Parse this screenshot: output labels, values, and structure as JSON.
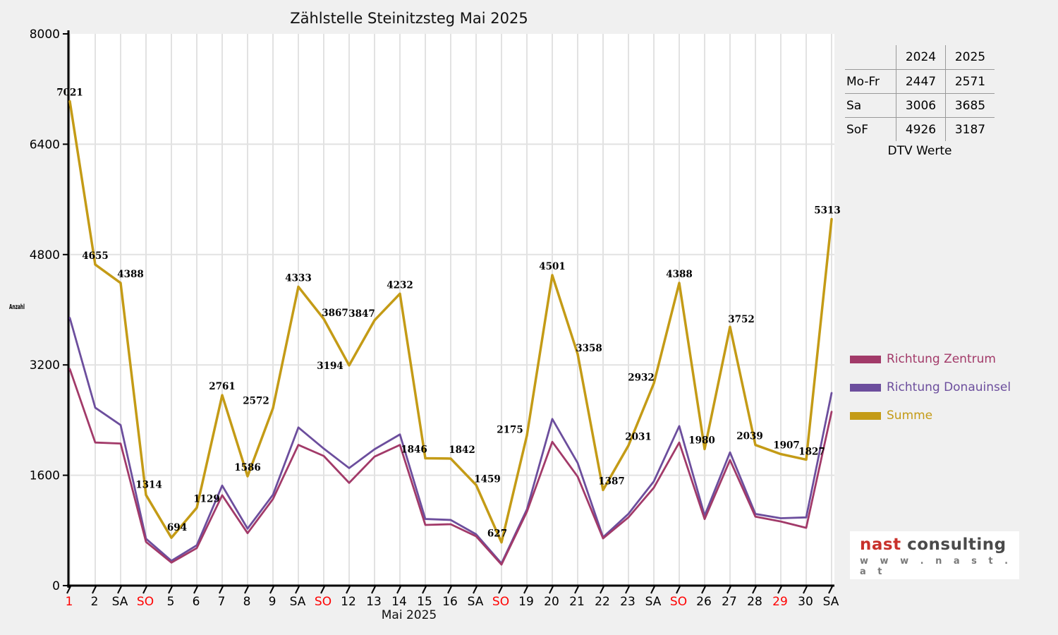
{
  "title": "Zählstelle Steinitzsteg Mai 2025",
  "colors": {
    "zentrum": "#A23A69",
    "donauinsel": "#6C4E9D",
    "summe": "#C49B16",
    "red_label": "#FF0000",
    "grid": "#E2E2E2",
    "axis": "#000000",
    "plot_bg": "#FFFFFF",
    "page_bg": "#F0F0F0",
    "label_text": "#000000"
  },
  "chart_data": {
    "type": "line",
    "title": "Zählstelle Steinitzsteg Mai 2025",
    "xlabel": "Mai 2025",
    "ylabel": "Anzahl",
    "ylim": [
      0,
      8000
    ],
    "yticks": [
      0,
      1600,
      3200,
      4800,
      6400,
      8000
    ],
    "grid": true,
    "legend_position": "right",
    "categories": [
      {
        "label": "1",
        "red": true
      },
      {
        "label": "2"
      },
      {
        "label": "SA"
      },
      {
        "label": "SO",
        "red": true
      },
      {
        "label": "5"
      },
      {
        "label": "6"
      },
      {
        "label": "7"
      },
      {
        "label": "8"
      },
      {
        "label": "9"
      },
      {
        "label": "SA"
      },
      {
        "label": "SO",
        "red": true
      },
      {
        "label": "12"
      },
      {
        "label": "13"
      },
      {
        "label": "14"
      },
      {
        "label": "15"
      },
      {
        "label": "16"
      },
      {
        "label": "SA"
      },
      {
        "label": "SO",
        "red": true
      },
      {
        "label": "19"
      },
      {
        "label": "20"
      },
      {
        "label": "21"
      },
      {
        "label": "22"
      },
      {
        "label": "23"
      },
      {
        "label": "SA"
      },
      {
        "label": "SO",
        "red": true
      },
      {
        "label": "26"
      },
      {
        "label": "27"
      },
      {
        "label": "28"
      },
      {
        "label": "29",
        "red": true
      },
      {
        "label": "30"
      },
      {
        "label": "SA"
      }
    ],
    "series": [
      {
        "name": "Richtung Zentrum",
        "color_key": "zentrum",
        "width": 2.8,
        "values": [
          3140,
          2075,
          2060,
          634,
          334,
          544,
          1310,
          760,
          1255,
          2040,
          1880,
          1490,
          1870,
          2040,
          880,
          890,
          715,
          305,
          1070,
          2085,
          1580,
          685,
          990,
          1420,
          2075,
          965,
          1820,
          1000,
          930,
          838,
          2520
        ]
      },
      {
        "name": "Richtung Donauinsel",
        "color_key": "donauinsel",
        "width": 2.8,
        "values": [
          3881,
          2580,
          2328,
          680,
          360,
          585,
          1451,
          826,
          1317,
          2293,
          1987,
          1704,
          1977,
          2192,
          966,
          952,
          744,
          322,
          1105,
          2416,
          1778,
          702,
          1041,
          1512,
          2313,
          1015,
          1932,
          1039,
          977,
          989,
          2793
        ]
      },
      {
        "name": "Summe",
        "color_key": "summe",
        "width": 3.5,
        "show_labels": true,
        "values": [
          7021,
          4655,
          4388,
          1314,
          694,
          1129,
          2761,
          1586,
          2572,
          4333,
          3867,
          3194,
          3847,
          4232,
          1846,
          1842,
          1459,
          627,
          2175,
          4501,
          3358,
          1387,
          2031,
          2932,
          4388,
          1980,
          3752,
          2039,
          1907,
          1827,
          5313
        ],
        "label_offsets": [
          [
            0,
            -8
          ],
          [
            0,
            -8
          ],
          [
            14,
            -8
          ],
          [
            4,
            -10
          ],
          [
            8,
            -10
          ],
          [
            14,
            -8
          ],
          [
            0,
            -8
          ],
          [
            0,
            -8
          ],
          [
            -24,
            -6
          ],
          [
            0,
            -8
          ],
          [
            16,
            -4
          ],
          [
            -27,
            5
          ],
          [
            -18,
            -5
          ],
          [
            0,
            -8
          ],
          [
            -16,
            -8
          ],
          [
            16,
            -8
          ],
          [
            16,
            -4
          ],
          [
            -6,
            -8
          ],
          [
            -24,
            -4
          ],
          [
            0,
            -8
          ],
          [
            16,
            -4
          ],
          [
            12,
            -8
          ],
          [
            14,
            -8
          ],
          [
            -18,
            -4
          ],
          [
            0,
            -8
          ],
          [
            -4,
            -8
          ],
          [
            16,
            -6
          ],
          [
            -8,
            -8
          ],
          [
            8,
            -8
          ],
          [
            8,
            -7
          ],
          [
            -6,
            -8
          ]
        ]
      }
    ]
  },
  "table": {
    "col_headers": [
      "2024",
      "2025"
    ],
    "rows": [
      {
        "label": "Mo-Fr",
        "values": [
          "2447",
          "2571"
        ]
      },
      {
        "label": "Sa",
        "values": [
          "3006",
          "3685"
        ]
      },
      {
        "label": "SoF",
        "values": [
          "4926",
          "3187"
        ]
      }
    ],
    "caption": "DTV Werte"
  },
  "legend": {
    "items": [
      {
        "label": "Richtung Zentrum",
        "color_key": "zentrum"
      },
      {
        "label": "Richtung Donauinsel",
        "color_key": "donauinsel"
      },
      {
        "label": "Summe",
        "color_key": "summe"
      }
    ]
  },
  "logo": {
    "brand": "nast",
    "brand2": "consulting",
    "url": "w w w . n a s t . a t"
  }
}
